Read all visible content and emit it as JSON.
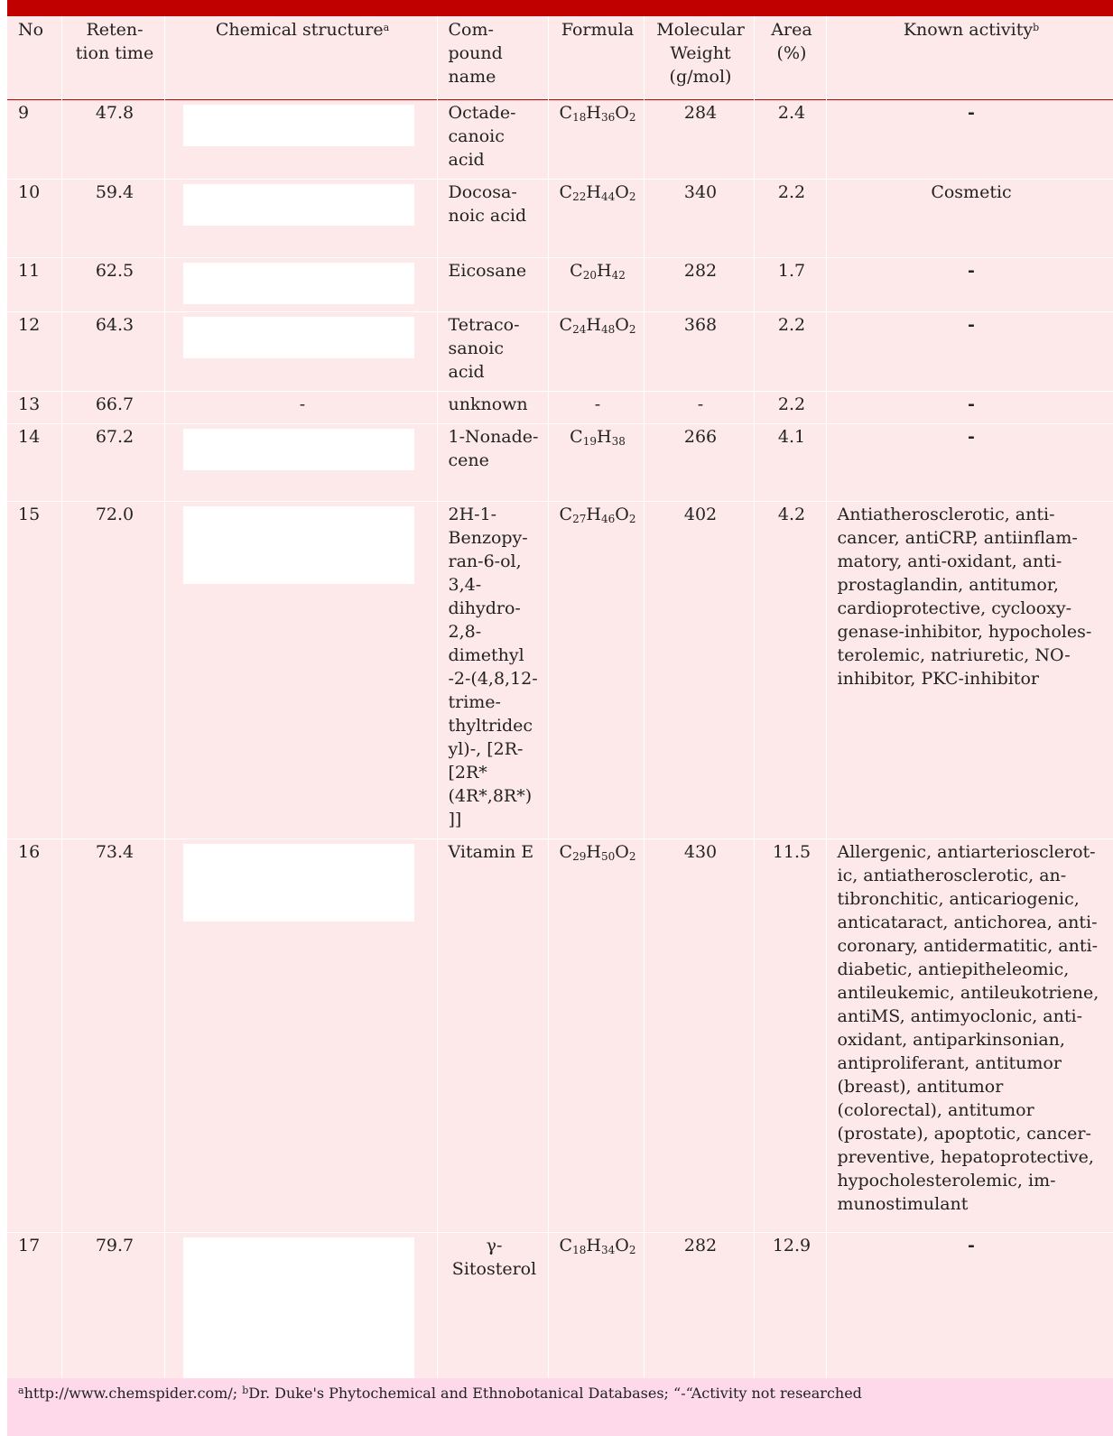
{
  "header": {
    "no": "No",
    "rt": "Reten-tion time",
    "structure": "Chemical structure",
    "structure_note": "a",
    "name": "Com-pound name",
    "formula": "Formula",
    "mw": "Molecular Weight (g/mol)",
    "area": "Area (%)",
    "activity": "Known activity",
    "activity_note": "b"
  },
  "rows": [
    {
      "no": "9",
      "rt": "47.8",
      "name": "Octade-canoic acid",
      "formula": [
        [
          "C",
          "18"
        ],
        [
          "H",
          "36"
        ],
        [
          "O",
          "2"
        ]
      ],
      "mw": "284",
      "area": "2.4",
      "activity": "-",
      "structure": "octadecanoic-acid-structure"
    },
    {
      "no": "10",
      "rt": "59.4",
      "name": "Docosa-noic acid",
      "formula": [
        [
          "C",
          "22"
        ],
        [
          "H",
          "44"
        ],
        [
          "O",
          "2"
        ]
      ],
      "mw": "340",
      "area": "2.2",
      "activity": "Cosmetic",
      "structure": "docosanoic-acid-structure"
    },
    {
      "no": "11",
      "rt": "62.5",
      "name": "Eicosane",
      "formula": [
        [
          "C",
          "20"
        ],
        [
          "H",
          "42"
        ]
      ],
      "mw": "282",
      "area": "1.7",
      "activity": "-",
      "structure": "eicosane-structure"
    },
    {
      "no": "12",
      "rt": "64.3",
      "name": "Tetraco-sanoic acid",
      "formula": [
        [
          "C",
          "24"
        ],
        [
          "H",
          "48"
        ],
        [
          "O",
          "2"
        ]
      ],
      "mw": "368",
      "area": "2.2",
      "activity": "-",
      "structure": "tetracosanoic-acid-structure"
    },
    {
      "no": "13",
      "rt": "66.7",
      "name": "unknown",
      "formula_text": "-",
      "mw": "-",
      "area": "2.2",
      "activity": "-",
      "structure_text": "-"
    },
    {
      "no": "14",
      "rt": "67.2",
      "name": "1-Nonade-cene",
      "formula": [
        [
          "C",
          "19"
        ],
        [
          "H",
          "38"
        ]
      ],
      "mw": "266",
      "area": "4.1",
      "activity": "-",
      "structure": "nonadecene-structure"
    },
    {
      "no": "15",
      "rt": "72.0",
      "name": "2H-1-Benzopy-ran-6-ol, 3,4-dihydro-2,8-dimethyl -2-(4,8,12-trime-thyltridec yl)-, [2R-[2R* (4R*,8R*) ]]",
      "formula": [
        [
          "C",
          "27"
        ],
        [
          "H",
          "46"
        ],
        [
          "O",
          "2"
        ]
      ],
      "mw": "402",
      "area": "4.2",
      "activity": "Antiatherosclerotic, anti-cancer, antiCRP, antiinflam-matory, anti-oxidant, anti-prostaglandin, antitumor, cardioprotective, cyclooxy-genase-inhibitor, hypocholes-terolemic, natriuretic, NO-inhibitor, PKC-inhibitor",
      "structure": "benzopyranol-structure"
    },
    {
      "no": "16",
      "rt": "73.4",
      "name": "Vitamin E",
      "formula": [
        [
          "C",
          "29"
        ],
        [
          "H",
          "50"
        ],
        [
          "O",
          "2"
        ]
      ],
      "mw": "430",
      "area": "11.5",
      "activity": "Allergenic, antiarteriosclerot-ic, antiatherosclerotic, an-tibronchitic, anticariogenic, anticataract, antichorea, anti-coronary, antidermatitic, anti-diabetic, antiepitheleomic, antileukemic, antileukotriene, antiMS, antimyoclonic, anti-oxidant, antiparkinsonian, antiproliferant, antitumor (breast), antitumor (colorectal), antitumor (prostate), apoptotic, cancer-preventive, hepatoprotective, hypocholesterolemic, im-munostimulant",
      "structure": "vitamin-e-structure"
    },
    {
      "no": "17",
      "rt": "79.7",
      "name": "γ-Sitosterol",
      "formula": [
        [
          "C",
          "18"
        ],
        [
          "H",
          "34"
        ],
        [
          "O",
          "2"
        ]
      ],
      "mw": "282",
      "area": "12.9",
      "activity": "-",
      "structure": "gamma-sitosterol-structure"
    }
  ],
  "footnote": {
    "a_mark": "a",
    "a_text": "http://www.chemspider.com/; ",
    "b_mark": "b",
    "b_text": "Dr. Duke's Phytochemical and Ethnobotanical Databases; “-“Activity not researched"
  },
  "colors": {
    "accent": "#c00000",
    "row_bg": "#fde9e9",
    "footer_bg": "#fdd9ea"
  }
}
